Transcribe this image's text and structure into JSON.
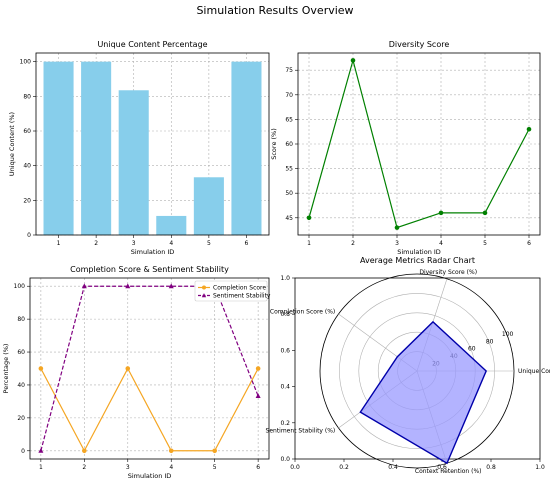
{
  "figure_title": "Simulation Results Overview",
  "chart_data": [
    {
      "type": "bar",
      "title": "Unique Content Percentage",
      "xlabel": "Simulation ID",
      "ylabel": "Unique Content (%)",
      "categories": [
        "1",
        "2",
        "3",
        "4",
        "5",
        "6"
      ],
      "values": [
        100,
        100,
        83.5,
        11,
        33.3,
        100
      ],
      "ylim": [
        0,
        105
      ],
      "yticks": [
        0,
        20,
        40,
        60,
        80,
        100
      ],
      "grid": true,
      "color": "#87ceeb"
    },
    {
      "type": "line",
      "title": "Diversity Score",
      "xlabel": "Simulation ID",
      "ylabel": "Score (%)",
      "x": [
        1,
        2,
        3,
        4,
        5,
        6
      ],
      "values": [
        45,
        77,
        43,
        46,
        46,
        63
      ],
      "ylim": [
        41.5,
        78.5
      ],
      "yticks": [
        45,
        50,
        55,
        60,
        65,
        70,
        75
      ],
      "grid": true,
      "color": "#008000"
    },
    {
      "type": "line",
      "title": "Completion Score & Sentiment Stability",
      "xlabel": "Simulation ID",
      "ylabel": "Percentage (%)",
      "x": [
        1,
        2,
        3,
        4,
        5,
        6
      ],
      "ylim": [
        -5,
        105
      ],
      "yticks": [
        0,
        20,
        40,
        60,
        80,
        100
      ],
      "grid": true,
      "legend_position": "top-right",
      "series": [
        {
          "name": "Completion Score",
          "values": [
            50,
            0,
            50,
            0,
            0,
            50
          ],
          "color": "#f5a623",
          "marker": "circle",
          "style": "solid"
        },
        {
          "name": "Sentiment Stability",
          "values": [
            0,
            100,
            100,
            100,
            100,
            33.3
          ],
          "color": "#800080",
          "marker": "triangle",
          "style": "dashed"
        }
      ]
    },
    {
      "type": "radar",
      "title": "Average Metrics Radar Chart",
      "categories": [
        "Unique Content (%)",
        "Diversity Score (%)",
        "Completion Score (%)",
        "Sentiment Stability (%)",
        "Context Retention (%)"
      ],
      "values": [
        71.3,
        53.3,
        25,
        72.2,
        100
      ],
      "rmax": 100,
      "rticks": [
        20,
        40,
        60,
        80,
        100
      ],
      "fill_color": "#9999ff",
      "line_color": "#0000aa",
      "frame_xticks": [
        "0.0",
        "0.2",
        "0.4",
        "0.6",
        "0.8",
        "1.0"
      ],
      "frame_yticks": [
        "0.0",
        "0.2",
        "0.4",
        "0.6",
        "0.8",
        "1.0"
      ]
    }
  ]
}
